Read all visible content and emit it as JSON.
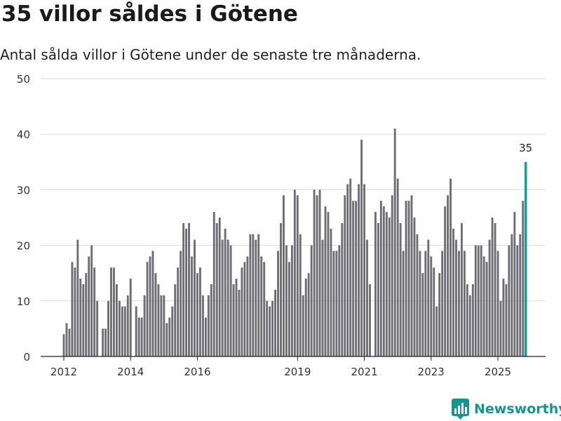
{
  "header": {
    "title": "35 villor såldes i Götene",
    "subtitle": "Antal sålda villor i Götene under de senaste tre månaderna."
  },
  "brand": {
    "name": "Newsworthy",
    "color": "#16958f"
  },
  "colors": {
    "bar": "#6e6d73",
    "highlight": "#13a09a",
    "grid": "#dcdcdc",
    "axis": "#222222"
  },
  "chart_data": {
    "type": "bar",
    "title": "35 villor såldes i Götene",
    "subtitle": "Antal sålda villor i Götene under de senaste tre månaderna.",
    "xlabel": "",
    "ylabel": "",
    "ylim": [
      0,
      50
    ],
    "yticks": [
      "0",
      "10",
      "20",
      "30",
      "40",
      "50"
    ],
    "x_start": "2012-01",
    "x_end": "2025-09",
    "xticks": [
      "2012",
      "2014",
      "2016",
      "2019",
      "2021",
      "2023",
      "2025"
    ],
    "highlight_label": "35",
    "values": [
      4,
      6,
      5,
      17,
      16,
      21,
      14,
      13,
      15,
      18,
      20,
      16,
      10,
      null,
      5,
      5,
      10,
      16,
      16,
      13,
      10,
      9,
      9,
      11,
      14,
      null,
      9,
      7,
      7,
      11,
      17,
      18,
      19,
      15,
      13,
      11,
      11,
      6,
      7,
      9,
      13,
      16,
      19,
      24,
      23,
      24,
      18,
      21,
      15,
      16,
      11,
      7,
      11,
      13,
      26,
      24,
      25,
      21,
      23,
      21,
      20,
      13,
      14,
      12,
      16,
      17,
      18,
      22,
      22,
      21,
      22,
      18,
      17,
      10,
      9,
      10,
      12,
      19,
      24,
      29,
      20,
      17,
      20,
      30,
      29,
      22,
      11,
      14,
      15,
      20,
      30,
      29,
      30,
      21,
      27,
      26,
      23,
      19,
      19,
      20,
      24,
      29,
      31,
      32,
      28,
      28,
      31,
      39,
      31,
      21,
      13,
      null,
      26,
      24,
      28,
      27,
      26,
      25,
      29,
      41,
      32,
      24,
      19,
      28,
      28,
      29,
      25,
      22,
      19,
      15,
      19,
      21,
      18,
      16,
      9,
      15,
      19,
      27,
      29,
      32,
      23,
      21,
      19,
      24,
      19,
      13,
      11,
      13,
      20,
      20,
      20,
      18,
      17,
      21,
      25,
      24,
      19,
      10,
      14,
      13,
      20,
      22,
      26,
      20,
      22,
      28,
      35
    ]
  }
}
